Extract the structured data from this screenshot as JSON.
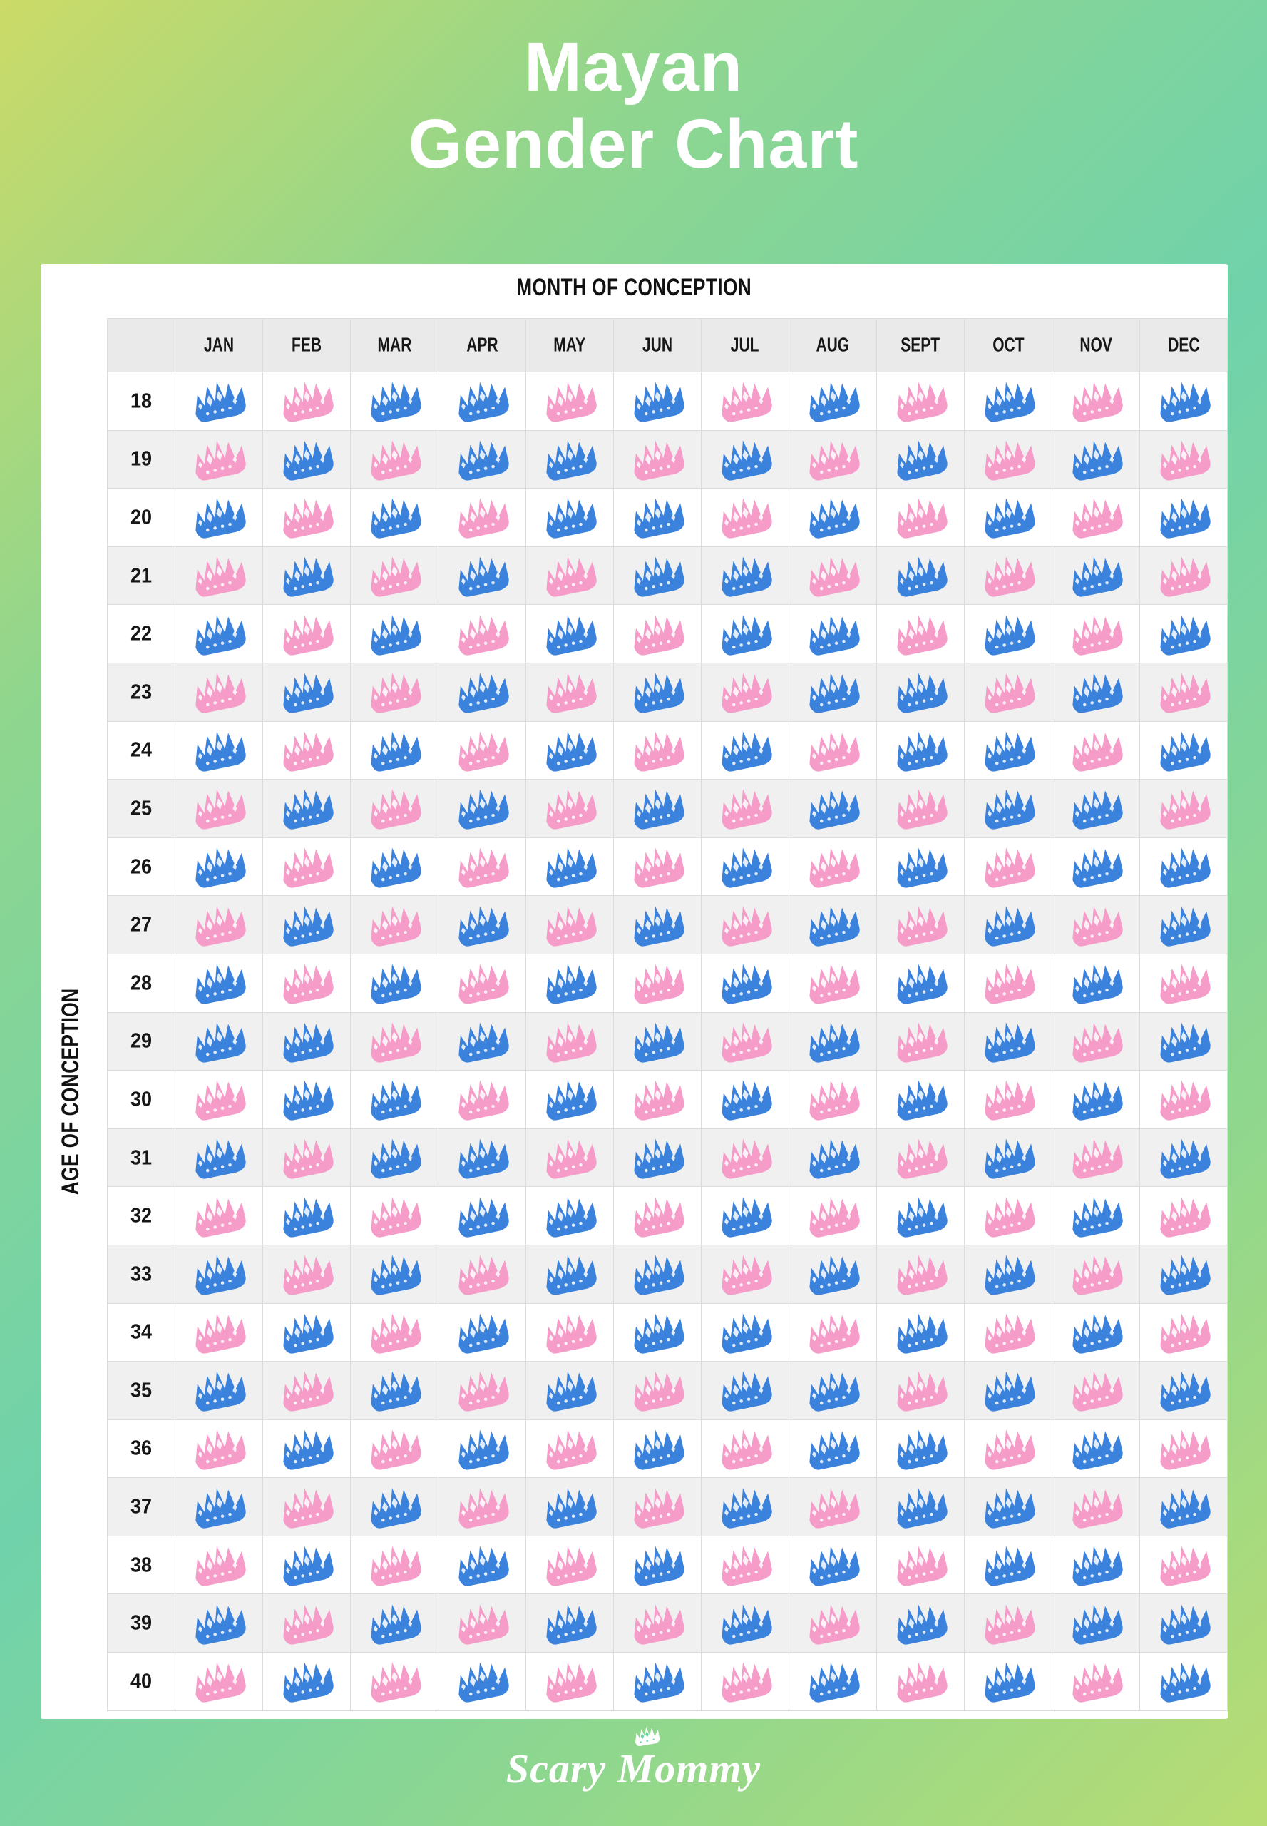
{
  "title": {
    "line1": "Mayan",
    "line2": "Gender Chart"
  },
  "axes": {
    "top_label": "MONTH OF CONCEPTION",
    "left_label": "AGE OF CONCEPTION"
  },
  "legend": {
    "boy_color": "#3b82dd",
    "girl_color": "#f59cc9",
    "boy_meaning": "boy crown (blue)",
    "girl_meaning": "girl crown (pink)"
  },
  "footer": {
    "brand": "Scary Mommy"
  },
  "chart_data": {
    "type": "table",
    "title": "Mayan Gender Chart",
    "xlabel": "MONTH OF CONCEPTION",
    "ylabel": "AGE OF CONCEPTION",
    "columns": [
      "JAN",
      "FEB",
      "MAR",
      "APR",
      "MAY",
      "JUN",
      "JUL",
      "AUG",
      "SEPT",
      "OCT",
      "NOV",
      "DEC"
    ],
    "cell_key": {
      "B": "boy",
      "G": "girl"
    },
    "rows": [
      {
        "age": "18",
        "pattern": "BGBBGBGBGBGB"
      },
      {
        "age": "19",
        "pattern": "GBGBBGBGBGBG"
      },
      {
        "age": "20",
        "pattern": "BGBGBBGBGBGB"
      },
      {
        "age": "21",
        "pattern": "GBGBGBBGBGBG"
      },
      {
        "age": "22",
        "pattern": "BGBGBGBBGBGB"
      },
      {
        "age": "23",
        "pattern": "GBGBGBGBBGBG"
      },
      {
        "age": "24",
        "pattern": "BGBGBGBGBBGB"
      },
      {
        "age": "25",
        "pattern": "GBGBGBGBGBBG"
      },
      {
        "age": "26",
        "pattern": "BGBGBGBGBGBB"
      },
      {
        "age": "27",
        "pattern": "GBGBGBGBGBGB"
      },
      {
        "age": "28",
        "pattern": "BGBGBGBGBGBG"
      },
      {
        "age": "29",
        "pattern": "BBGBGBGBGBGB"
      },
      {
        "age": "30",
        "pattern": "GBBGBGBGBGBG"
      },
      {
        "age": "31",
        "pattern": "BGBBGBGBGBGB"
      },
      {
        "age": "32",
        "pattern": "GBGBBGBGBGBG"
      },
      {
        "age": "33",
        "pattern": "BGBGBBGBGBGB"
      },
      {
        "age": "34",
        "pattern": "GBGBGBBGBGBG"
      },
      {
        "age": "35",
        "pattern": "BGBGBGBBGBGB"
      },
      {
        "age": "36",
        "pattern": "GBGBGBGBBGBG"
      },
      {
        "age": "37",
        "pattern": "BGBGBGBGBBGB"
      },
      {
        "age": "38",
        "pattern": "GBGBGBGBGBBG"
      },
      {
        "age": "39",
        "pattern": "BGBGBGBGBGBB"
      },
      {
        "age": "40",
        "pattern": "GBGBGBGBGBGB"
      }
    ]
  }
}
